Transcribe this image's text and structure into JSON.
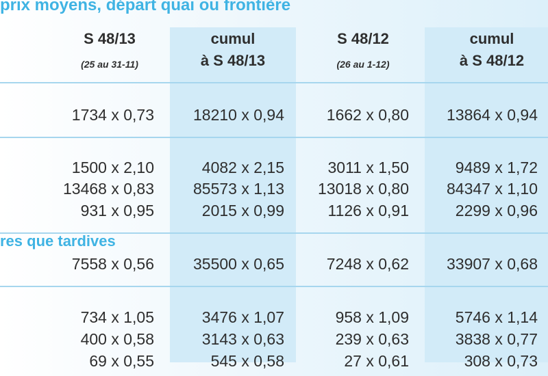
{
  "header": {
    "title": "prix moyens, départ quai ou frontière"
  },
  "columns": [
    {
      "label": "S 48/13",
      "sublabel": "(25 au 31-11)"
    },
    {
      "label": "cumul",
      "sublabel": "à S 48/13"
    },
    {
      "label": "S 48/12",
      "sublabel": "(26 au 1-12)"
    },
    {
      "label": "cumul",
      "sublabel": "à S 48/12"
    }
  ],
  "groups": [
    {
      "rows": [
        [
          "1734 x 0,73",
          "18210 x 0,94",
          "1662 x 0,80",
          "13864 x 0,94"
        ]
      ]
    },
    {
      "rows": [
        [
          "1500 x 2,10",
          "4082 x 2,15",
          "3011 x 1,50",
          "9489 x 1,72"
        ],
        [
          "13468 x 0,83",
          "85573 x 1,13",
          "13018 x 0,80",
          "84347 x 1,10"
        ],
        [
          "931 x 0,95",
          "2015 x 0,99",
          "1126 x 0,91",
          "2299 x 0,96"
        ]
      ]
    },
    {
      "label": "res que tardives",
      "rows": [
        [
          "7558 x 0,56",
          "35500 x 0,65",
          "7248 x 0,62",
          "33907 x 0,68"
        ]
      ]
    },
    {
      "rows": [
        [
          "734 x 1,05",
          "3476 x 1,07",
          "958 x 1,09",
          "5746 x 1,14"
        ],
        [
          "400 x 0,58",
          "3143 x 0,63",
          "239 x 0,63",
          "3838 x 0,77"
        ],
        [
          "69 x 0,55",
          "545 x 0,58",
          "27 x 0,61",
          "308 x 0,73"
        ]
      ]
    }
  ]
}
